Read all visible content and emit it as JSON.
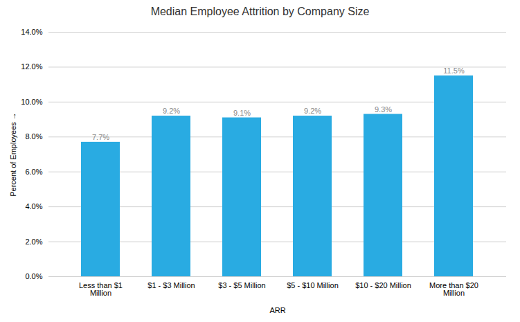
{
  "chart_data": {
    "type": "bar",
    "title": "Median Employee Attrition by Company Size",
    "categories": [
      "Less than $1\nMillion",
      "$1 - $3 Million",
      "$3 - $5 Million",
      "$5 - $10 Million",
      "$10 - $20 Million",
      "More than $20\nMillion"
    ],
    "values": [
      0.077,
      0.092,
      0.091,
      0.092,
      0.093,
      0.115
    ],
    "value_labels": [
      "7.7%",
      "9.2%",
      "9.1%",
      "9.2%",
      "9.3%",
      "11.5%"
    ],
    "data_labels": true,
    "color": "#29ABE2",
    "xlabel": "ARR",
    "ylabel": "Percent of Employees",
    "ylim": [
      0,
      0.14
    ],
    "yticks": [
      {
        "value": 0.0,
        "label": "0.0%"
      },
      {
        "value": 0.02,
        "label": "2.0%"
      },
      {
        "value": 0.04,
        "label": "4.0%"
      },
      {
        "value": 0.06,
        "label": "6.0%"
      },
      {
        "value": 0.08,
        "label": "8.0%"
      },
      {
        "value": 0.1,
        "label": "10.0%"
      },
      {
        "value": 0.12,
        "label": "12.0%"
      },
      {
        "value": 0.14,
        "label": "14.0%"
      }
    ],
    "grid": true
  }
}
